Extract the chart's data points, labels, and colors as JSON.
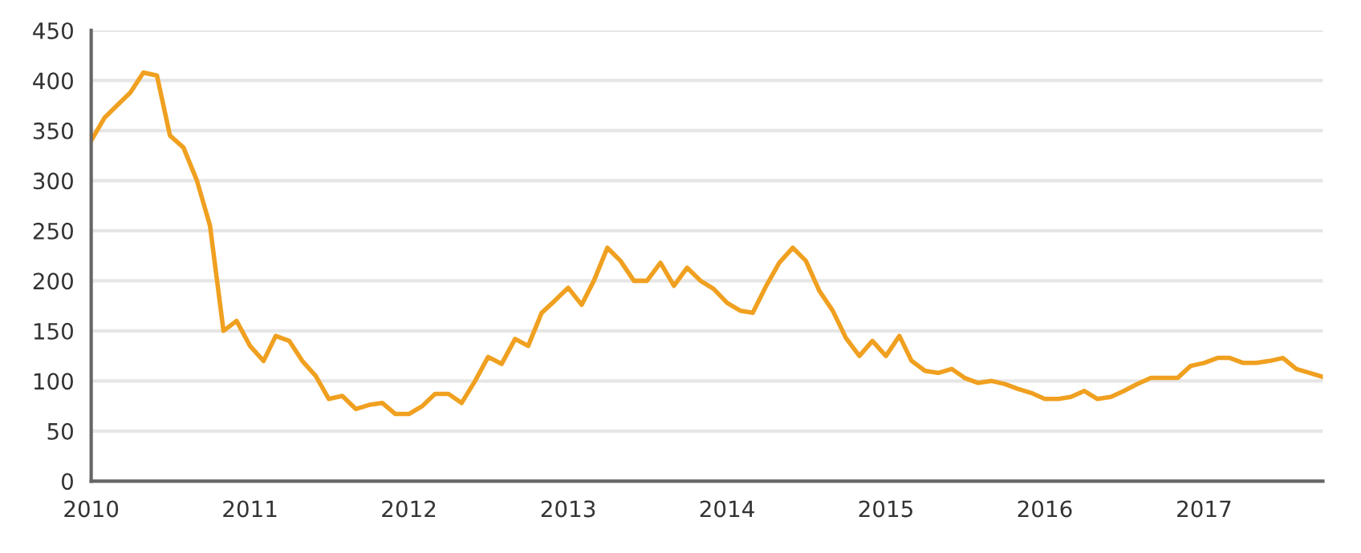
{
  "chart_data": {
    "type": "line",
    "x": [
      "2010-01",
      "2010-02",
      "2010-03",
      "2010-04",
      "2010-05",
      "2010-06",
      "2010-07",
      "2010-08",
      "2010-09",
      "2010-10",
      "2010-11",
      "2010-12",
      "2011-01",
      "2011-02",
      "2011-03",
      "2011-04",
      "2011-05",
      "2011-06",
      "2011-07",
      "2011-08",
      "2011-09",
      "2011-10",
      "2011-11",
      "2011-12",
      "2012-01",
      "2012-02",
      "2012-03",
      "2012-04",
      "2012-05",
      "2012-06",
      "2012-07",
      "2012-08",
      "2012-09",
      "2012-10",
      "2012-11",
      "2012-12",
      "2013-01",
      "2013-02",
      "2013-03",
      "2013-04",
      "2013-05",
      "2013-06",
      "2013-07",
      "2013-08",
      "2013-09",
      "2013-10",
      "2013-11",
      "2013-12",
      "2014-01",
      "2014-02",
      "2014-03",
      "2014-04",
      "2014-05",
      "2014-06",
      "2014-07",
      "2014-08",
      "2014-09",
      "2014-10",
      "2014-11",
      "2014-12",
      "2015-01",
      "2015-02",
      "2015-03",
      "2015-04",
      "2015-05",
      "2015-06",
      "2015-07",
      "2015-08",
      "2015-09",
      "2015-10",
      "2015-11",
      "2015-12",
      "2016-01",
      "2016-02",
      "2016-03",
      "2016-04",
      "2016-05",
      "2016-06",
      "2016-07",
      "2016-08",
      "2016-09",
      "2016-10",
      "2016-11",
      "2016-12",
      "2017-01",
      "2017-02",
      "2017-03",
      "2017-04",
      "2017-05",
      "2017-06",
      "2017-07",
      "2017-08",
      "2017-09",
      "2017-10"
    ],
    "series": [
      {
        "color": "#f0a020",
        "values": [
          340,
          363,
          375,
          388,
          408,
          405,
          345,
          333,
          300,
          255,
          150,
          160,
          135,
          120,
          145,
          140,
          120,
          105,
          82,
          85,
          72,
          76,
          78,
          67,
          67,
          75,
          87,
          87,
          78,
          100,
          124,
          117,
          142,
          135,
          168,
          180,
          193,
          176,
          200,
          233,
          220,
          200,
          200,
          218,
          195,
          213,
          200,
          192,
          178,
          170,
          168,
          195,
          218,
          233,
          220,
          190,
          170,
          143,
          125,
          140,
          125,
          145,
          120,
          110,
          108,
          112,
          103,
          98,
          100,
          97,
          92,
          88,
          82,
          82,
          84,
          90,
          82,
          84,
          90,
          97,
          103,
          103,
          103,
          115,
          118,
          123,
          123,
          118,
          118,
          120,
          123,
          112,
          108,
          104
        ]
      }
    ],
    "xlim": [
      "2010-01",
      "2017-10"
    ],
    "xticks": [
      {
        "value": "2010",
        "label": "2010"
      },
      {
        "value": "2011",
        "label": "2011"
      },
      {
        "value": "2012",
        "label": "2012"
      },
      {
        "value": "2013",
        "label": "2013"
      },
      {
        "value": "2014",
        "label": "2014"
      },
      {
        "value": "2015",
        "label": "2015"
      },
      {
        "value": "2016",
        "label": "2016"
      },
      {
        "value": "2017",
        "label": "2017"
      }
    ],
    "ylim": [
      0,
      450
    ],
    "yticks": [
      0,
      50,
      100,
      150,
      200,
      250,
      300,
      350,
      400,
      450
    ],
    "grid": "y",
    "line_style": "solid",
    "marker": "none"
  }
}
